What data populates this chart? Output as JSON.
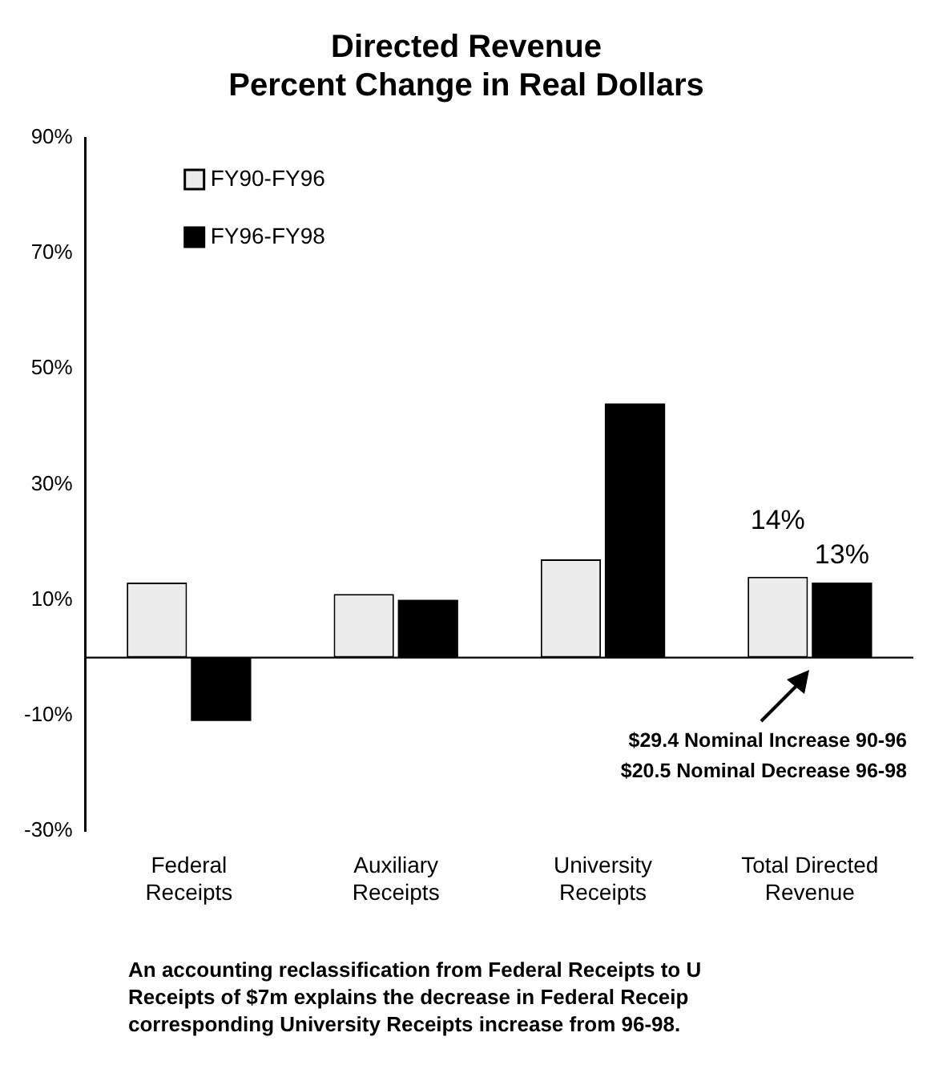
{
  "chart_data": {
    "type": "bar",
    "title": [
      "Directed Revenue",
      "Percent Change in Real Dollars"
    ],
    "categories": [
      "Federal Receipts",
      "Auxiliary Receipts",
      "University Receipts",
      "Total Directed Revenue"
    ],
    "series": [
      {
        "name": "FY90-FY96",
        "color": "#ececec",
        "values": [
          13,
          11,
          17,
          14
        ],
        "value_labels": [
          null,
          null,
          null,
          "14%"
        ]
      },
      {
        "name": "FY96-FY98",
        "color": "#000000",
        "values": [
          -11,
          10,
          44,
          13
        ],
        "value_labels": [
          null,
          null,
          null,
          "13%"
        ]
      }
    ],
    "ylim": [
      -30,
      90
    ],
    "yticks": [
      {
        "value": -30,
        "label": "-30%"
      },
      {
        "value": -10,
        "label": "-10%"
      },
      {
        "value": 10,
        "label": "10%"
      },
      {
        "value": 30,
        "label": "30%"
      },
      {
        "value": 50,
        "label": "50%"
      },
      {
        "value": 70,
        "label": "70%"
      },
      {
        "value": 90,
        "label": "90%"
      }
    ],
    "grid": false,
    "legend": "top left",
    "annotations": [
      "$29.4 Nominal Increase 90-96",
      "$20.5 Nominal Decrease 96-98",
      "An accounting reclassification from Federal Receipts to U",
      "Receipts of $7m explains the decrease in Federal Receip",
      "corresponding University Receipts increase from 96-98."
    ]
  }
}
